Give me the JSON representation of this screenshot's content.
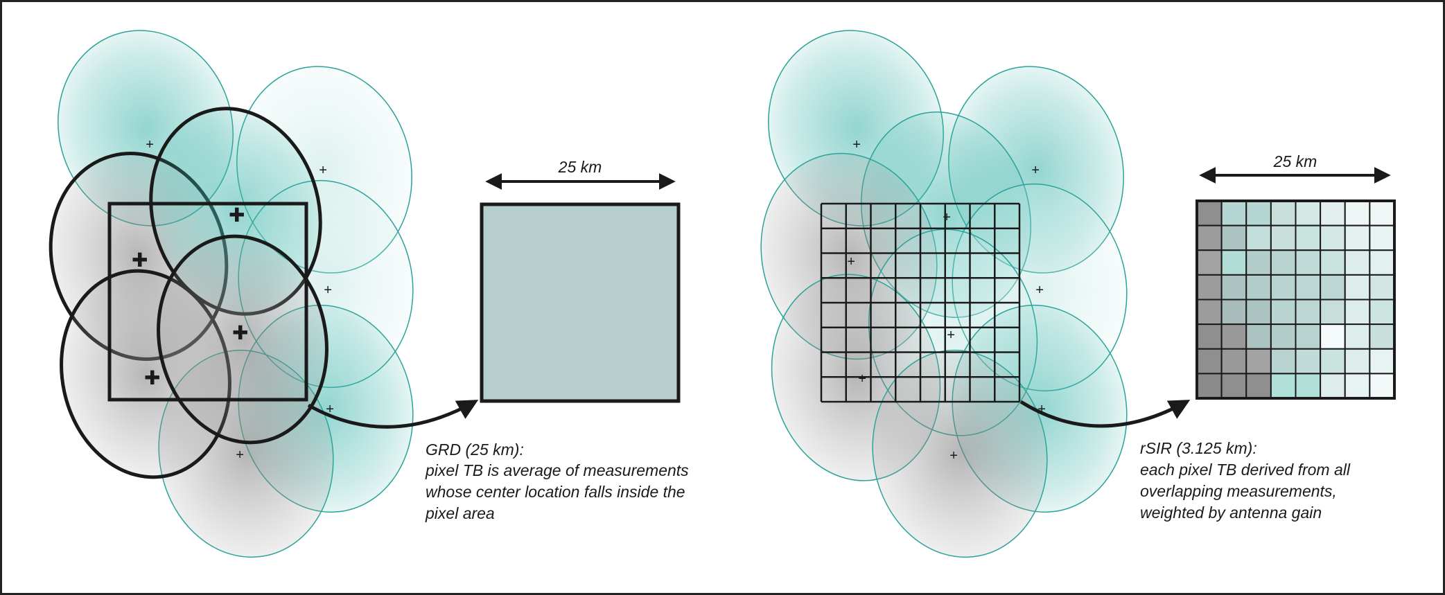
{
  "colors": {
    "teal": "#3bb3a8",
    "teal_stroke": "#2aa39a",
    "teal_fill": "#5fc2b8",
    "gray_fill": "#8c8c8c",
    "dark": "#1a1a1a",
    "grd_pixel": "#b6cfcc",
    "frame": "#222222"
  },
  "left_panel": {
    "scale_label": "25 km",
    "caption": [
      "GRD (25 km):",
      "pixel TB is average of measurements",
      "whose center location falls inside the",
      "pixel area"
    ]
  },
  "right_panel": {
    "scale_label": "25 km",
    "caption": [
      "rSIR (3.125 km):",
      "each pixel TB derived from all",
      "overlapping measurements,",
      "weighted by antenna gain"
    ],
    "rsir_grid_colors": [
      [
        "#8f8f8f",
        "#b5d6d2",
        "#b5d6d2",
        "#c8dfdc",
        "#d4e8e6",
        "#e2efee",
        "#eef6f5",
        "#f0f7f6"
      ],
      [
        "#9c9c9c",
        "#acc4c1",
        "#c4dfdb",
        "#c8dfdc",
        "#c9e3df",
        "#d4e8e6",
        "#e4f1f0",
        "#e7f3f2"
      ],
      [
        "#a3a3a3",
        "#b1ddd7",
        "#b2cdca",
        "#b8d4d0",
        "#c1dbd8",
        "#c9e3df",
        "#dcedeb",
        "#e2f1ef"
      ],
      [
        "#9c9c9c",
        "#acc4c1",
        "#b2cdca",
        "#b8d4d0",
        "#bcd6d3",
        "#bcd6d3",
        "#dcedeb",
        "#d2e7e4"
      ],
      [
        "#9c9c9c",
        "#a8bdbb",
        "#acc4c1",
        "#b8d4d0",
        "#bcd6d3",
        "#c7deda",
        "#dcedeb",
        "#cce5e1"
      ],
      [
        "#8f8f8f",
        "#999999",
        "#acc4c1",
        "#b2cdca",
        "#b8d4d0",
        "#f4fbfa",
        "#dcedeb",
        "#c8dfdc"
      ],
      [
        "#8f8f8f",
        "#999999",
        "#a3a3a3",
        "#b8d4d0",
        "#c1dbd8",
        "#c9e3df",
        "#dcedeb",
        "#e7f3f2"
      ],
      [
        "#8a8a8a",
        "#8f8f8f",
        "#8f8f8f",
        "#b1e0d9",
        "#b1e0d9",
        "#dcedeb",
        "#e7f3f2",
        "#f3f9f8"
      ]
    ]
  }
}
